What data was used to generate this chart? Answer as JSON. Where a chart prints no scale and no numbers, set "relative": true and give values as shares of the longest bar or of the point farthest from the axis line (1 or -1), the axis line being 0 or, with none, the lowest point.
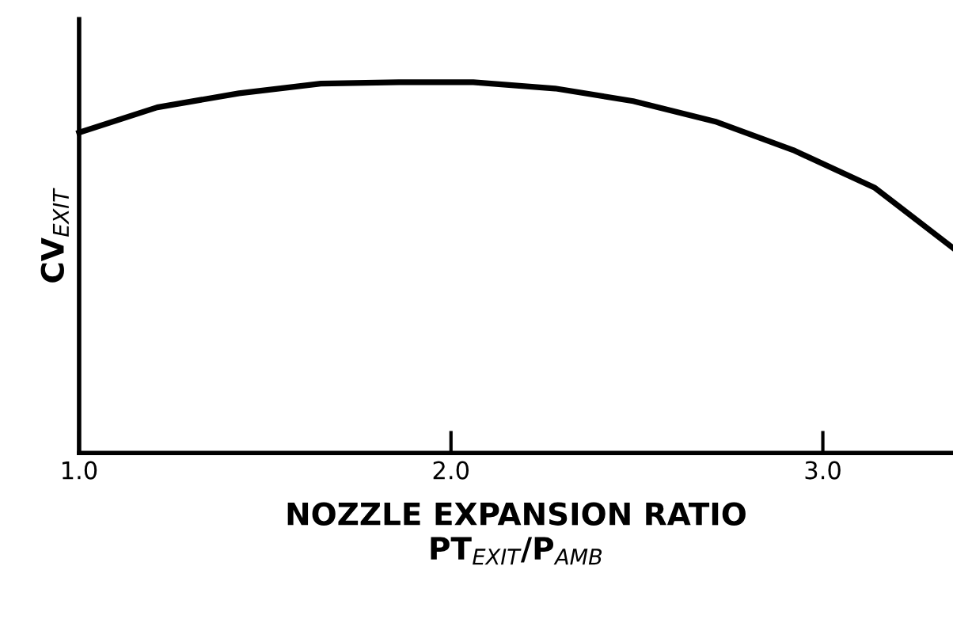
{
  "chart_data": {
    "type": "line",
    "relative": true,
    "xlabel": "NOZZLE EXPANSION RATIO\nPT$_{EXIT}$/P$_{AMB}$",
    "ylabel": "CV$_{EXIT}$",
    "x": [
      1.0,
      1.21,
      1.43,
      1.65,
      1.86,
      2.06,
      2.28,
      2.49,
      2.71,
      2.92,
      3.14,
      3.35
    ],
    "series": [
      {
        "color": "#000000",
        "values": [
          0.864,
          0.932,
          0.97,
          0.996,
          1.0,
          1.0,
          0.983,
          0.949,
          0.894,
          0.817,
          0.715,
          0.553
        ]
      }
    ],
    "xlim": [
      1.0,
      3.35
    ],
    "xticks": [
      {
        "value": 1.0,
        "label": "1.0"
      },
      {
        "value": 2.0,
        "label": "2.0"
      },
      {
        "value": 3.0,
        "label": "3.0"
      }
    ],
    "tick_labels": "x",
    "grid": false,
    "legend": false,
    "marker": "none",
    "line_style": "solid"
  }
}
